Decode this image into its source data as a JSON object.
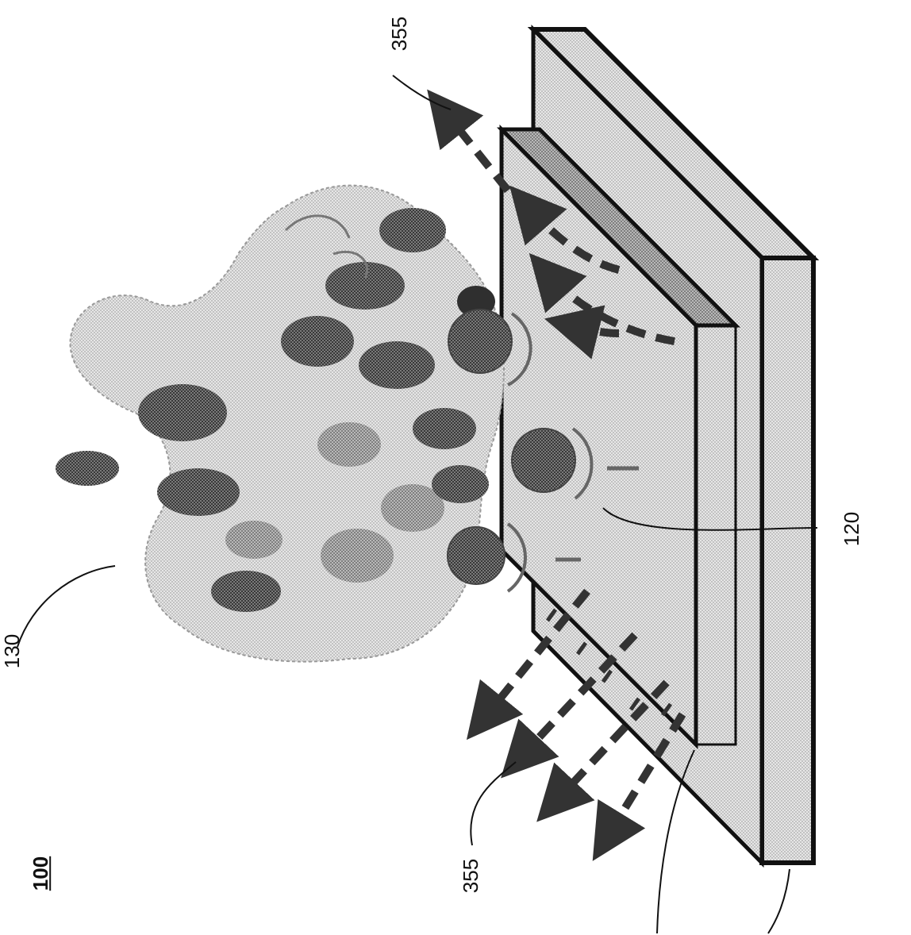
{
  "figure": {
    "number": "100",
    "labels": {
      "protein": "130",
      "arrows_top": "355",
      "arrows_bottom": "355",
      "binding_sites": "120"
    }
  }
}
